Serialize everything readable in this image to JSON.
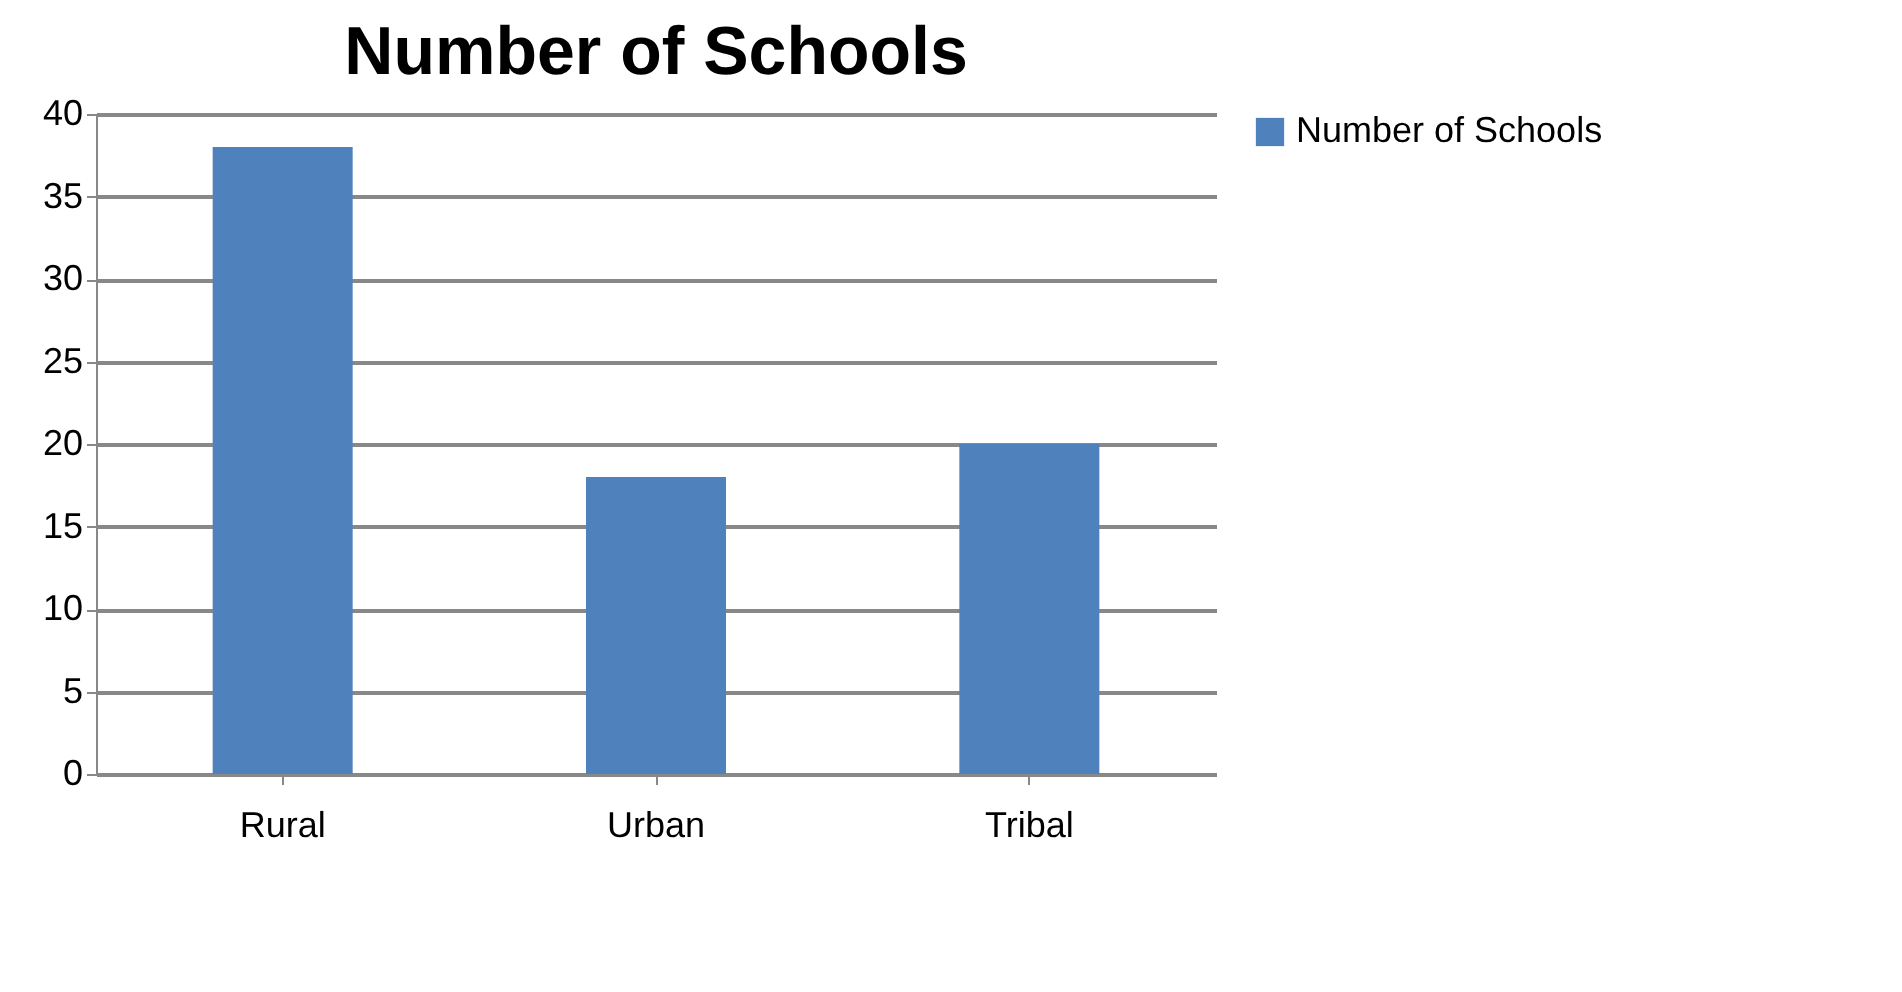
{
  "chart_data": {
    "type": "bar",
    "title": "Number of Schools",
    "categories": [
      "Rural",
      "Urban",
      "Tribal"
    ],
    "series": [
      {
        "name": "Number of Schools",
        "color": "#4f81bd",
        "values": [
          38,
          18,
          20
        ]
      }
    ],
    "ylim": [
      0,
      40
    ],
    "yticks": [
      0,
      5,
      10,
      15,
      20,
      25,
      30,
      35,
      40
    ],
    "grid": "y",
    "legend": "right"
  }
}
